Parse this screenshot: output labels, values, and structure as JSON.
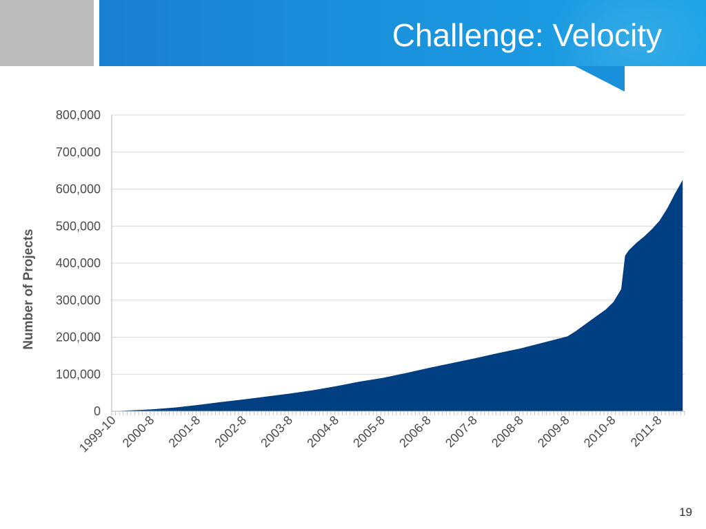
{
  "slide": {
    "title": "Challenge: Velocity",
    "page_number": "19"
  },
  "colors": {
    "title_bar": "#1a94dd",
    "gray_block": "#bcbcbc",
    "area_fill": "#003f82",
    "grid": "#d9d9d9"
  },
  "chart_data": {
    "type": "area",
    "title": "",
    "xlabel": "",
    "ylabel": "Number of Projects",
    "ylim": [
      0,
      800000
    ],
    "yticks": [
      0,
      100000,
      200000,
      300000,
      400000,
      500000,
      600000,
      700000,
      800000
    ],
    "ytick_labels": [
      "0",
      "100,000",
      "200,000",
      "300,000",
      "400,000",
      "500,000",
      "600,000",
      "700,000",
      "800,000"
    ],
    "x_tick_labels": [
      "1999-10",
      "2000-8",
      "2001-8",
      "2002-8",
      "2003-8",
      "2004-8",
      "2005-8",
      "2006-8",
      "2007-8",
      "2008-8",
      "2009-8",
      "2010-8",
      "2011-8"
    ],
    "grid": true,
    "legend": "none",
    "series": [
      {
        "x": [
          "1999-10",
          "2000-2",
          "2000-8",
          "2001-2",
          "2001-8",
          "2002-2",
          "2002-8",
          "2003-2",
          "2003-8",
          "2004-2",
          "2004-8",
          "2005-2",
          "2005-8",
          "2006-2",
          "2006-8",
          "2007-2",
          "2007-8",
          "2008-2",
          "2008-8",
          "2009-2",
          "2009-8",
          "2009-10",
          "2009-12",
          "2010-2",
          "2010-4",
          "2010-6",
          "2010-8",
          "2010-10",
          "2010-11",
          "2010-12",
          "2011-2",
          "2011-4",
          "2011-6",
          "2011-8",
          "2011-10",
          "2011-12",
          "2012-2"
        ],
        "values": [
          0,
          2000,
          5000,
          10000,
          17000,
          25000,
          32000,
          40000,
          48000,
          57000,
          68000,
          80000,
          90000,
          103000,
          117000,
          130000,
          143000,
          157000,
          170000,
          186000,
          202000,
          215000,
          230000,
          245000,
          260000,
          275000,
          295000,
          330000,
          420000,
          435000,
          455000,
          472000,
          492000,
          515000,
          548000,
          588000,
          625000
        ]
      }
    ]
  }
}
